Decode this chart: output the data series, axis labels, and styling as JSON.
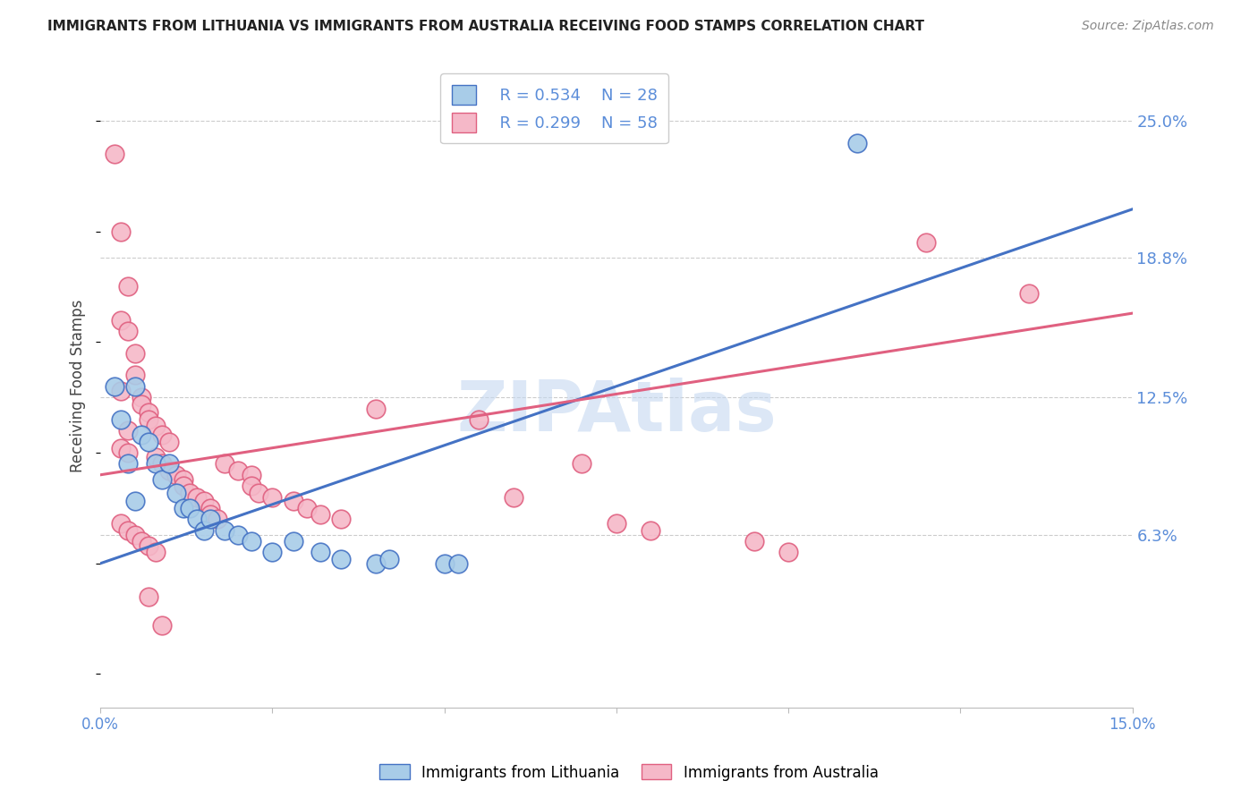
{
  "title": "IMMIGRANTS FROM LITHUANIA VS IMMIGRANTS FROM AUSTRALIA RECEIVING FOOD STAMPS CORRELATION CHART",
  "source": "Source: ZipAtlas.com",
  "ylabel": "Receiving Food Stamps",
  "ytick_labels": [
    "25.0%",
    "18.8%",
    "12.5%",
    "6.3%"
  ],
  "ytick_values": [
    0.25,
    0.188,
    0.125,
    0.063
  ],
  "xlim": [
    0.0,
    0.15
  ],
  "ylim": [
    -0.015,
    0.275
  ],
  "legend_blue_r": "R = 0.534",
  "legend_blue_n": "N = 28",
  "legend_pink_r": "R = 0.299",
  "legend_pink_n": "N = 58",
  "legend_blue_label": "Immigrants from Lithuania",
  "legend_pink_label": "Immigrants from Australia",
  "blue_color": "#a8cce8",
  "pink_color": "#f5b8c8",
  "line_blue_color": "#4472c4",
  "line_pink_color": "#e06080",
  "tick_color": "#5b8dd9",
  "ylabel_color": "#444444",
  "title_color": "#222222",
  "source_color": "#888888",
  "watermark_text": "ZIPAtlas",
  "watermark_color": "#c5d8f0",
  "background_color": "#ffffff",
  "grid_color": "#cccccc",
  "blue_scatter": [
    [
      0.002,
      0.13
    ],
    [
      0.003,
      0.115
    ],
    [
      0.004,
      0.095
    ],
    [
      0.005,
      0.13
    ],
    [
      0.006,
      0.108
    ],
    [
      0.007,
      0.105
    ],
    [
      0.008,
      0.095
    ],
    [
      0.009,
      0.088
    ],
    [
      0.01,
      0.095
    ],
    [
      0.011,
      0.082
    ],
    [
      0.012,
      0.075
    ],
    [
      0.013,
      0.075
    ],
    [
      0.014,
      0.07
    ],
    [
      0.015,
      0.065
    ],
    [
      0.016,
      0.07
    ],
    [
      0.018,
      0.065
    ],
    [
      0.02,
      0.063
    ],
    [
      0.022,
      0.06
    ],
    [
      0.025,
      0.055
    ],
    [
      0.028,
      0.06
    ],
    [
      0.032,
      0.055
    ],
    [
      0.035,
      0.052
    ],
    [
      0.04,
      0.05
    ],
    [
      0.042,
      0.052
    ],
    [
      0.05,
      0.05
    ],
    [
      0.052,
      0.05
    ],
    [
      0.11,
      0.24
    ],
    [
      0.005,
      0.078
    ]
  ],
  "pink_scatter": [
    [
      0.002,
      0.235
    ],
    [
      0.003,
      0.2
    ],
    [
      0.004,
      0.175
    ],
    [
      0.003,
      0.16
    ],
    [
      0.004,
      0.155
    ],
    [
      0.005,
      0.145
    ],
    [
      0.005,
      0.135
    ],
    [
      0.003,
      0.128
    ],
    [
      0.006,
      0.125
    ],
    [
      0.006,
      0.122
    ],
    [
      0.007,
      0.118
    ],
    [
      0.007,
      0.115
    ],
    [
      0.008,
      0.112
    ],
    [
      0.004,
      0.11
    ],
    [
      0.009,
      0.108
    ],
    [
      0.01,
      0.105
    ],
    [
      0.003,
      0.102
    ],
    [
      0.004,
      0.1
    ],
    [
      0.008,
      0.098
    ],
    [
      0.009,
      0.095
    ],
    [
      0.01,
      0.092
    ],
    [
      0.011,
      0.09
    ],
    [
      0.012,
      0.088
    ],
    [
      0.012,
      0.085
    ],
    [
      0.013,
      0.082
    ],
    [
      0.014,
      0.08
    ],
    [
      0.015,
      0.078
    ],
    [
      0.016,
      0.075
    ],
    [
      0.016,
      0.072
    ],
    [
      0.017,
      0.07
    ],
    [
      0.018,
      0.095
    ],
    [
      0.02,
      0.092
    ],
    [
      0.022,
      0.09
    ],
    [
      0.022,
      0.085
    ],
    [
      0.023,
      0.082
    ],
    [
      0.025,
      0.08
    ],
    [
      0.028,
      0.078
    ],
    [
      0.03,
      0.075
    ],
    [
      0.032,
      0.072
    ],
    [
      0.035,
      0.07
    ],
    [
      0.003,
      0.068
    ],
    [
      0.004,
      0.065
    ],
    [
      0.005,
      0.063
    ],
    [
      0.006,
      0.06
    ],
    [
      0.007,
      0.058
    ],
    [
      0.008,
      0.055
    ],
    [
      0.04,
      0.12
    ],
    [
      0.055,
      0.115
    ],
    [
      0.06,
      0.08
    ],
    [
      0.07,
      0.095
    ],
    [
      0.075,
      0.068
    ],
    [
      0.08,
      0.065
    ],
    [
      0.095,
      0.06
    ],
    [
      0.1,
      0.055
    ],
    [
      0.12,
      0.195
    ],
    [
      0.135,
      0.172
    ],
    [
      0.007,
      0.035
    ],
    [
      0.009,
      0.022
    ]
  ],
  "blue_line_x": [
    0.0,
    0.15
  ],
  "blue_line_y": [
    0.05,
    0.21
  ],
  "pink_line_x": [
    0.0,
    0.15
  ],
  "pink_line_y": [
    0.09,
    0.163
  ]
}
